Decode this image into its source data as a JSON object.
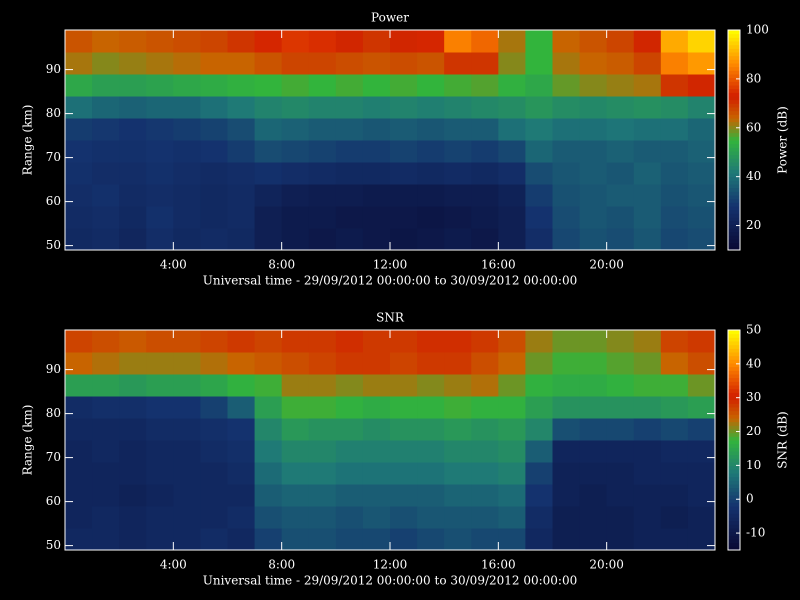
{
  "chart_data": [
    {
      "type": "heatmap",
      "title": "Power",
      "x_label": "Universal time - 29/09/2012 00:00:00 to 30/09/2012 00:00:00",
      "y_label": "Range (km)",
      "xlim": [
        0,
        24
      ],
      "ylim": [
        49,
        99
      ],
      "xticks": [
        {
          "value": 4,
          "label": "4:00"
        },
        {
          "value": 8,
          "label": "8:00"
        },
        {
          "value": 12,
          "label": "12:00"
        },
        {
          "value": 16,
          "label": "16:00"
        },
        {
          "value": 20,
          "label": "20:00"
        }
      ],
      "yticks": [
        50,
        60,
        70,
        80,
        90
      ],
      "x": [
        0.5,
        1.5,
        2.5,
        3.5,
        4.5,
        5.5,
        6.5,
        7.5,
        8.5,
        9.5,
        10.5,
        11.5,
        12.5,
        13.5,
        14.5,
        15.5,
        16.5,
        17.5,
        18.5,
        19.5,
        20.5,
        21.5,
        22.5,
        23.5
      ],
      "y": [
        51.5,
        56.5,
        61.5,
        66.5,
        71.5,
        76.5,
        81.5,
        86.5,
        91.5,
        96.5
      ],
      "values": [
        [
          24,
          25,
          23,
          26,
          24,
          25,
          24,
          20,
          18,
          17,
          18,
          17,
          16,
          17,
          18,
          17,
          20,
          26,
          32,
          34,
          33,
          35,
          32,
          33
        ],
        [
          25,
          26,
          24,
          27,
          25,
          24,
          25,
          20,
          18,
          18,
          17,
          17,
          17,
          16,
          17,
          18,
          20,
          28,
          33,
          35,
          34,
          36,
          33,
          34
        ],
        [
          26,
          27,
          25,
          26,
          25,
          24,
          25,
          22,
          20,
          19,
          19,
          18,
          18,
          18,
          19,
          19,
          21,
          30,
          34,
          35,
          36,
          36,
          34,
          35
        ],
        [
          27,
          26,
          26,
          27,
          26,
          25,
          26,
          27,
          26,
          25,
          24,
          24,
          25,
          24,
          25,
          24,
          26,
          33,
          35,
          36,
          35,
          37,
          35,
          36
        ],
        [
          28,
          27,
          27,
          28,
          27,
          28,
          30,
          33,
          32,
          31,
          30,
          30,
          31,
          30,
          31,
          30,
          32,
          38,
          36,
          36,
          37,
          36,
          36,
          37
        ],
        [
          30,
          29,
          28,
          29,
          30,
          31,
          33,
          38,
          37,
          36,
          36,
          35,
          36,
          35,
          36,
          36,
          40,
          42,
          40,
          40,
          41,
          40,
          40,
          38
        ],
        [
          40,
          38,
          37,
          38,
          38,
          40,
          42,
          44,
          45,
          44,
          44,
          43,
          44,
          43,
          44,
          45,
          46,
          48,
          46,
          45,
          46,
          47,
          46,
          44
        ],
        [
          52,
          50,
          50,
          51,
          52,
          53,
          54,
          55,
          56,
          55,
          56,
          55,
          56,
          55,
          56,
          57,
          54,
          52,
          58,
          60,
          61,
          62,
          70,
          72
        ],
        [
          62,
          60,
          61,
          62,
          63,
          64,
          64,
          66,
          68,
          68,
          67,
          66,
          67,
          66,
          70,
          70,
          60,
          55,
          62,
          64,
          65,
          68,
          85,
          88
        ],
        [
          66,
          64,
          65,
          66,
          67,
          68,
          70,
          74,
          76,
          75,
          72,
          70,
          72,
          74,
          85,
          82,
          62,
          55,
          64,
          66,
          68,
          72,
          90,
          95
        ]
      ],
      "colorbar": {
        "label": "Power (dB)",
        "lim": [
          10,
          100
        ],
        "ticks": [
          20,
          40,
          60,
          80,
          100
        ]
      }
    },
    {
      "type": "heatmap",
      "title": "SNR",
      "x_label": "Universal time - 29/09/2012 00:00:00 to 30/09/2012 00:00:00",
      "y_label": "Range (km)",
      "xlim": [
        0,
        24
      ],
      "ylim": [
        49,
        99
      ],
      "xticks": [
        {
          "value": 4,
          "label": "4:00"
        },
        {
          "value": 8,
          "label": "8:00"
        },
        {
          "value": 12,
          "label": "12:00"
        },
        {
          "value": 16,
          "label": "16:00"
        },
        {
          "value": 20,
          "label": "20:00"
        }
      ],
      "yticks": [
        50,
        60,
        70,
        80,
        90
      ],
      "x": [
        0.5,
        1.5,
        2.5,
        3.5,
        4.5,
        5.5,
        6.5,
        7.5,
        8.5,
        9.5,
        10.5,
        11.5,
        12.5,
        13.5,
        14.5,
        15.5,
        16.5,
        17.5,
        18.5,
        19.5,
        20.5,
        21.5,
        22.5,
        23.5
      ],
      "y": [
        51.5,
        56.5,
        61.5,
        66.5,
        71.5,
        76.5,
        81.5,
        86.5,
        91.5,
        96.5
      ],
      "values": [
        [
          -5,
          -5,
          -6,
          -5,
          -5,
          -4,
          -5,
          0,
          2,
          2,
          1,
          1,
          0,
          1,
          2,
          1,
          1,
          -5,
          -8,
          -8,
          -8,
          -7,
          -7,
          -7
        ],
        [
          -6,
          -5,
          -6,
          -5,
          -5,
          -5,
          -4,
          2,
          3,
          3,
          2,
          3,
          2,
          3,
          3,
          3,
          4,
          -4,
          -8,
          -8,
          -8,
          -7,
          -8,
          -7
        ],
        [
          -6,
          -6,
          -7,
          -6,
          -5,
          -5,
          -5,
          4,
          5,
          5,
          4,
          4,
          4,
          4,
          5,
          5,
          6,
          -2,
          -7,
          -8,
          -7,
          -7,
          -7,
          -6
        ],
        [
          -6,
          -6,
          -6,
          -5,
          -5,
          -5,
          -4,
          6,
          8,
          8,
          7,
          7,
          7,
          7,
          8,
          8,
          9,
          0,
          -7,
          -7,
          -7,
          -6,
          -6,
          -6
        ],
        [
          -6,
          -5,
          -6,
          -5,
          -5,
          -4,
          -3,
          8,
          10,
          10,
          9,
          9,
          9,
          9,
          10,
          10,
          11,
          4,
          -6,
          -6,
          -6,
          -6,
          -5,
          -5
        ],
        [
          -5,
          -5,
          -5,
          -4,
          -4,
          -3,
          -2,
          10,
          13,
          12,
          12,
          11,
          12,
          12,
          13,
          12,
          13,
          10,
          2,
          1,
          1,
          0,
          1,
          0
        ],
        [
          -4,
          -3,
          -3,
          -2,
          -2,
          0,
          4,
          14,
          18,
          18,
          17,
          16,
          17,
          17,
          18,
          17,
          17,
          14,
          12,
          12,
          12,
          12,
          13,
          14
        ],
        [
          14,
          14,
          13,
          14,
          14,
          15,
          17,
          18,
          22,
          22,
          21,
          22,
          22,
          21,
          22,
          23,
          20,
          17,
          16,
          16,
          17,
          18,
          18,
          20
        ],
        [
          24,
          23,
          22,
          22,
          22,
          23,
          24,
          25,
          26,
          27,
          28,
          28,
          27,
          28,
          28,
          26,
          24,
          20,
          18,
          18,
          19,
          20,
          24,
          26
        ],
        [
          27,
          26,
          25,
          26,
          26,
          27,
          28,
          27,
          28,
          28,
          29,
          28,
          28,
          29,
          29,
          28,
          26,
          22,
          20,
          20,
          21,
          22,
          27,
          28
        ]
      ],
      "colorbar": {
        "label": "SNR (dB)",
        "lim": [
          -15,
          50
        ],
        "ticks": [
          -10,
          0,
          10,
          20,
          30,
          40,
          50
        ]
      }
    }
  ]
}
